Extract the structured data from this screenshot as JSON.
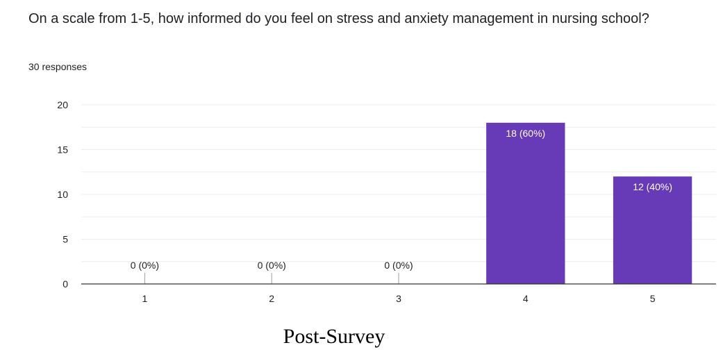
{
  "question": {
    "title": "On a scale from 1-5, how informed do you feel on stress and anxiety management in nursing school?",
    "responses": "30 responses"
  },
  "caption": "Post-Survey",
  "colors": {
    "bar": "#673ab7",
    "grid": "#ececec",
    "axis": "#333333",
    "text": "#202124"
  },
  "chart_data": {
    "type": "bar",
    "categories": [
      "1",
      "2",
      "3",
      "4",
      "5"
    ],
    "values": [
      0,
      0,
      0,
      18,
      12
    ],
    "labels": [
      "0 (0%)",
      "0 (0%)",
      "0 (0%)",
      "18 (60%)",
      "12 (40%)"
    ],
    "ylim": [
      0,
      20
    ],
    "yticks": [
      0,
      5,
      10,
      15,
      20
    ],
    "grid": true,
    "title": "On a scale from 1-5, how informed do you feel on stress and anxiety management in nursing school?",
    "xlabel": "",
    "ylabel": ""
  }
}
